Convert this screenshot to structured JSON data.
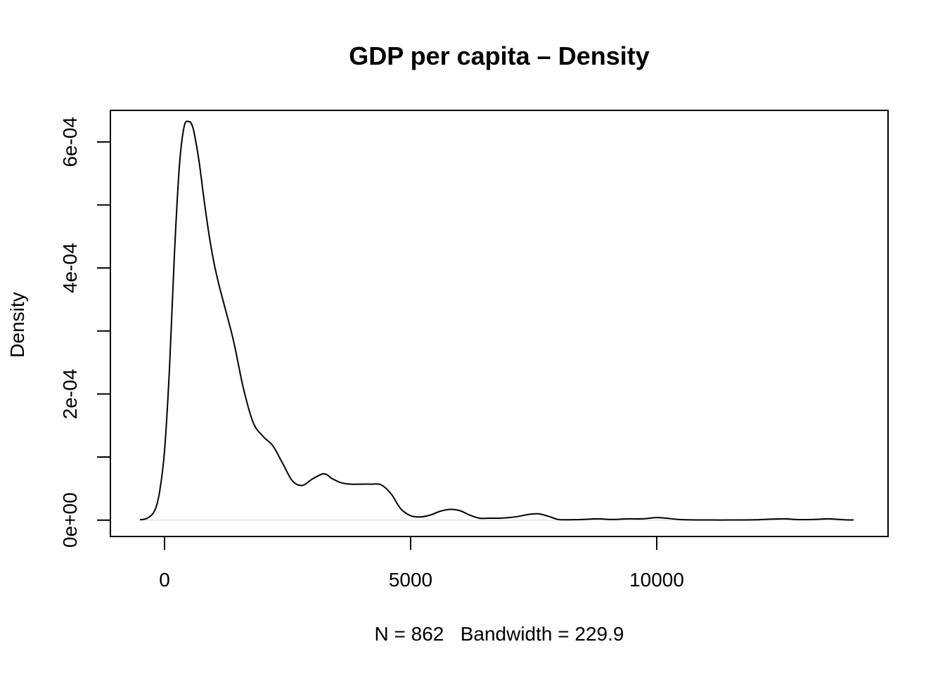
{
  "chart_data": {
    "type": "line",
    "title": "GDP per capita – Density",
    "xlabel": "N = 862   Bandwidth = 229.9",
    "ylabel": "Density",
    "xlim": [
      -1100,
      14700
    ],
    "ylim": [
      -2.6e-05,
      0.00065
    ],
    "x_ticks": [
      0,
      5000,
      10000
    ],
    "x_tick_labels": [
      "0",
      "5000",
      "10000"
    ],
    "y_ticks": [
      0,
      0.0001,
      0.0002,
      0.0003,
      0.0004,
      0.0005,
      0.0006
    ],
    "y_tick_labels": [
      "0e+00",
      "",
      "2e-04",
      "",
      "4e-04",
      "",
      "6e-04"
    ],
    "grid": false,
    "zero_line": true,
    "series": [
      {
        "x": [
          -500,
          -350,
          -200,
          -100,
          0,
          100,
          200,
          300,
          400,
          500,
          550,
          600,
          700,
          800,
          900,
          1000,
          1100,
          1200,
          1400,
          1600,
          1800,
          2000,
          2200,
          2400,
          2600,
          2800,
          3000,
          3200,
          3300,
          3400,
          3600,
          3800,
          4000,
          4200,
          4400,
          4600,
          4800,
          5000,
          5200,
          5400,
          5600,
          5800,
          6000,
          6200,
          6400,
          6600,
          6800,
          7000,
          7200,
          7400,
          7600,
          7800,
          8000,
          8200,
          8500,
          8800,
          9100,
          9400,
          9700,
          10000,
          10200,
          10500,
          11000,
          11500,
          12000,
          12300,
          12600,
          12900,
          13200,
          13500,
          13800,
          14000
        ],
        "y": [
          5e-07,
          3e-06,
          1.5e-05,
          4.5e-05,
          0.00011,
          0.00024,
          0.00042,
          0.00056,
          0.000625,
          0.000632,
          0.000628,
          0.000615,
          0.00057,
          0.00051,
          0.000455,
          0.00041,
          0.000375,
          0.000345,
          0.000285,
          0.00021,
          0.000155,
          0.000133,
          0.000118,
          9e-05,
          6.2e-05,
          5.5e-05,
          6.5e-05,
          7.3e-05,
          7.2e-05,
          6.6e-05,
          5.9e-05,
          5.7e-05,
          5.7e-05,
          5.7e-05,
          5.6e-05,
          4.2e-05,
          1.8e-05,
          7e-06,
          5e-06,
          8e-06,
          1.4e-05,
          1.7e-05,
          1.5e-05,
          8e-06,
          3e-06,
          3e-06,
          3e-06,
          4e-06,
          6e-06,
          9e-06,
          1e-05,
          6e-06,
          1e-06,
          5e-07,
          1e-06,
          2e-06,
          1e-06,
          2e-06,
          2e-06,
          4e-06,
          3e-06,
          8e-07,
          2e-07,
          2e-07,
          5e-07,
          1.5e-06,
          2e-06,
          8e-07,
          1e-06,
          2e-06,
          5e-07,
          2e-07
        ]
      }
    ]
  }
}
